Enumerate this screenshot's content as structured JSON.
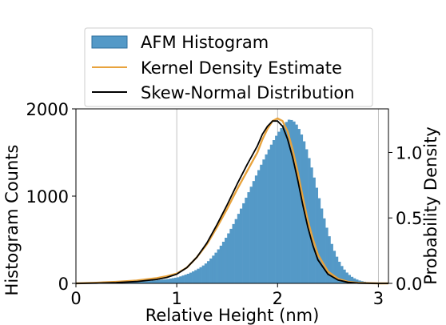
{
  "chart_data": {
    "type": "bar",
    "xlabel": "Relative Height (nm)",
    "ylabel_left": "Histogram Counts",
    "ylabel_right": "Probability Density",
    "xlim": [
      0,
      3.1
    ],
    "ylim_left": [
      0,
      2000
    ],
    "ylim_right": [
      0,
      1.333
    ],
    "x_ticks": [
      0,
      1,
      2,
      3
    ],
    "x_tick_labels": [
      "0",
      "1",
      "2",
      "3"
    ],
    "y_left_ticks": [
      0,
      1000,
      2000
    ],
    "y_left_tick_labels": [
      "0",
      "1000",
      "2000"
    ],
    "y_right_ticks": [
      0.0,
      0.5,
      1.0
    ],
    "y_right_tick_labels": [
      "0.0",
      "0.5",
      "1.0"
    ],
    "grid": "vertical",
    "legend": {
      "placement": "top",
      "entries": [
        {
          "label": "AFM Histogram",
          "kind": "patch",
          "color": "#5499c7"
        },
        {
          "label": "Kernel Density Estimate",
          "kind": "line",
          "color": "#e8a33d"
        },
        {
          "label": "Skew-Normal Distribution",
          "kind": "line",
          "color": "#000000"
        }
      ]
    },
    "histogram": {
      "name": "AFM Histogram",
      "color": "#5499c7",
      "bin_width": 0.025,
      "bin_start": 0.4,
      "counts": [
        3,
        5,
        7,
        9,
        11,
        13,
        15,
        17,
        19,
        21,
        23,
        25,
        27,
        29,
        32,
        35,
        38,
        41,
        44,
        47,
        50,
        55,
        60,
        65,
        70,
        80,
        90,
        100,
        110,
        123,
        137,
        152,
        168,
        185,
        205,
        228,
        255,
        285,
        318,
        352,
        390,
        432,
        477,
        523,
        573,
        625,
        680,
        737,
        797,
        857,
        918,
        982,
        1045,
        1108,
        1173,
        1236,
        1298,
        1360,
        1420,
        1478,
        1535,
        1590,
        1642,
        1692,
        1738,
        1780,
        1817,
        1850,
        1876,
        1872,
        1855,
        1820,
        1770,
        1706,
        1628,
        1537,
        1436,
        1328,
        1213,
        1096,
        976,
        858,
        745,
        638,
        540,
        452,
        373,
        306,
        248,
        199,
        158,
        124,
        97,
        75,
        58,
        44,
        33,
        25,
        19,
        14,
        10,
        7,
        5,
        3,
        2
      ]
    },
    "series": [
      {
        "name": "Kernel Density Estimate",
        "color": "#e8a33d",
        "x": [
          0.0,
          0.2,
          0.4,
          0.6,
          0.8,
          0.9,
          1.0,
          1.1,
          1.2,
          1.3,
          1.4,
          1.5,
          1.6,
          1.7,
          1.8,
          1.85,
          1.9,
          1.95,
          2.0,
          2.05,
          2.1,
          2.15,
          2.2,
          2.25,
          2.3,
          2.35,
          2.4,
          2.5,
          2.6,
          2.7,
          2.8,
          3.0,
          3.1
        ],
        "y": [
          0.0,
          0.005,
          0.012,
          0.022,
          0.04,
          0.055,
          0.075,
          0.12,
          0.2,
          0.3,
          0.43,
          0.57,
          0.72,
          0.86,
          1.0,
          1.1,
          1.18,
          1.24,
          1.26,
          1.24,
          1.16,
          1.02,
          0.85,
          0.66,
          0.48,
          0.34,
          0.22,
          0.09,
          0.035,
          0.012,
          0.004,
          0.0,
          0.0
        ]
      },
      {
        "name": "Skew-Normal Distribution",
        "color": "#000000",
        "x": [
          0.0,
          0.2,
          0.4,
          0.6,
          0.8,
          0.9,
          1.0,
          1.1,
          1.2,
          1.3,
          1.4,
          1.5,
          1.6,
          1.7,
          1.8,
          1.85,
          1.9,
          1.95,
          2.0,
          2.05,
          2.1,
          2.15,
          2.2,
          2.25,
          2.3,
          2.35,
          2.4,
          2.5,
          2.6,
          2.7,
          2.8,
          3.0,
          3.1
        ],
        "y": [
          0.0,
          0.002,
          0.006,
          0.014,
          0.03,
          0.045,
          0.07,
          0.12,
          0.2,
          0.31,
          0.45,
          0.6,
          0.76,
          0.91,
          1.05,
          1.14,
          1.2,
          1.24,
          1.24,
          1.2,
          1.1,
          0.96,
          0.79,
          0.6,
          0.43,
          0.29,
          0.18,
          0.07,
          0.025,
          0.008,
          0.002,
          0.0,
          0.0
        ]
      }
    ]
  }
}
